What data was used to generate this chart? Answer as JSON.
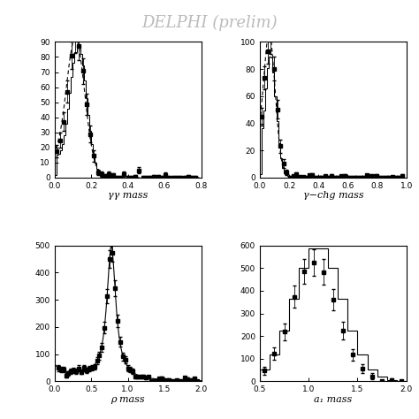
{
  "title": "DELPHI (prelim)",
  "title_color": "#bbbbbb",
  "background_color": "#ffffff",
  "panel1": {
    "xlabel": "γγ mass",
    "xlim": [
      0,
      0.8
    ],
    "ylim": [
      0,
      90
    ],
    "yticks": [
      0,
      10,
      20,
      30,
      40,
      50,
      60,
      70,
      80,
      90
    ],
    "xticks": [
      0,
      0.2,
      0.4,
      0.6,
      0.8
    ]
  },
  "panel2": {
    "xlabel": "γ−chg mass",
    "xlim": [
      0,
      1.0
    ],
    "ylim": [
      0,
      100
    ],
    "yticks": [
      0,
      20,
      40,
      60,
      80,
      100
    ],
    "xticks": [
      0,
      0.2,
      0.4,
      0.6,
      0.8,
      1.0
    ]
  },
  "panel3": {
    "xlabel": "ρ mass",
    "xlim": [
      0,
      2.0
    ],
    "ylim": [
      0,
      500
    ],
    "yticks": [
      0,
      100,
      200,
      300,
      400,
      500
    ],
    "xticks": [
      0,
      0.5,
      1.0,
      1.5,
      2.0
    ]
  },
  "panel4": {
    "xlabel": "a₁ mass",
    "xlim": [
      0.5,
      2.0
    ],
    "ylim": [
      0,
      600
    ],
    "yticks": [
      0,
      100,
      200,
      300,
      400,
      500,
      600
    ],
    "xticks": [
      0.5,
      1.0,
      1.5,
      2.0
    ]
  }
}
